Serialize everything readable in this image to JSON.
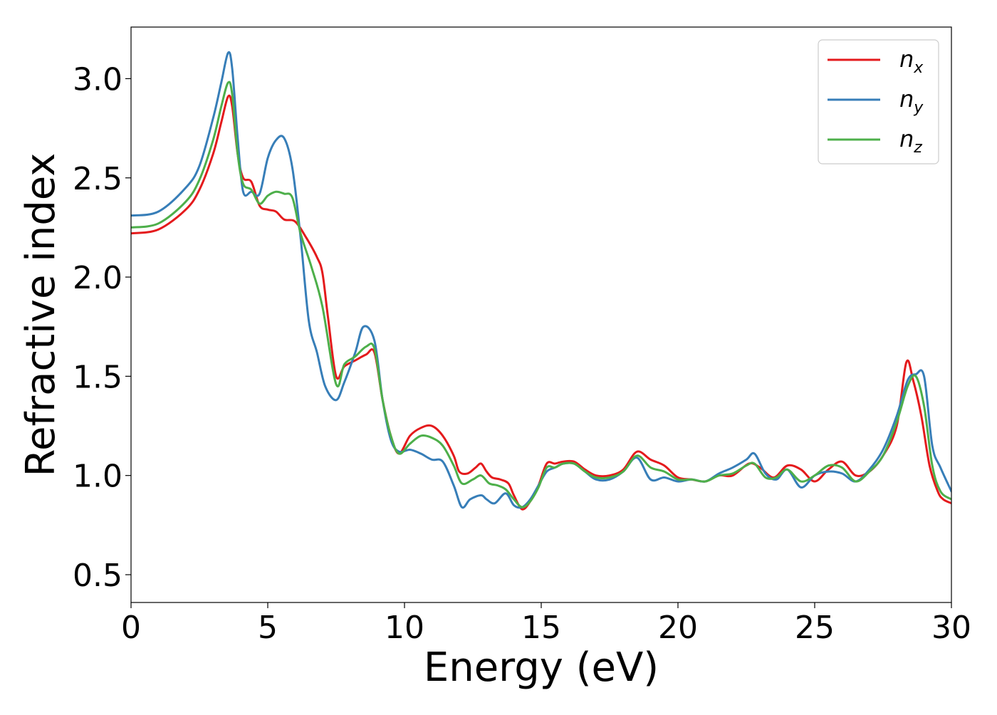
{
  "chart_data": {
    "type": "line",
    "title": "",
    "xlabel": "Energy (eV)",
    "ylabel": "Refractive index",
    "xlim": [
      0,
      30
    ],
    "ylim": [
      0.36,
      3.26
    ],
    "xticks": [
      0,
      5,
      10,
      15,
      20,
      25,
      30
    ],
    "yticks": [
      0.5,
      1.0,
      1.5,
      2.0,
      2.5,
      3.0
    ],
    "xtick_labels": [
      "0",
      "5",
      "10",
      "15",
      "20",
      "25",
      "30"
    ],
    "ytick_labels": [
      "0.5",
      "1.0",
      "1.5",
      "2.0",
      "2.5",
      "3.0"
    ],
    "grid": false,
    "legend_position": "top-right",
    "series": [
      {
        "name": "n_x",
        "legend_base": "n",
        "legend_sub": "x",
        "color": "#e41a1c",
        "x": [
          0,
          1,
          2,
          2.5,
          3.0,
          3.3,
          3.55,
          3.7,
          3.9,
          4.1,
          4.4,
          4.7,
          5.0,
          5.3,
          5.6,
          6.0,
          6.4,
          6.8,
          7.0,
          7.2,
          7.5,
          7.8,
          8.2,
          8.6,
          8.9,
          9.2,
          9.5,
          9.8,
          10.2,
          10.6,
          11.0,
          11.4,
          11.8,
          12.0,
          12.3,
          12.6,
          12.8,
          13.0,
          13.2,
          13.5,
          13.8,
          14.0,
          14.3,
          14.6,
          14.9,
          15.2,
          15.5,
          15.8,
          16.2,
          16.6,
          17.0,
          17.5,
          18.0,
          18.5,
          19.0,
          19.5,
          20.0,
          20.5,
          21.0,
          21.5,
          22.0,
          22.6,
          23.0,
          23.5,
          24.0,
          24.5,
          25.0,
          25.5,
          26.0,
          26.5,
          27.0,
          27.5,
          28.0,
          28.35,
          28.6,
          28.9,
          29.2,
          29.5,
          29.7,
          30.0
        ],
        "y": [
          2.22,
          2.24,
          2.34,
          2.44,
          2.62,
          2.78,
          2.91,
          2.86,
          2.62,
          2.5,
          2.48,
          2.36,
          2.34,
          2.33,
          2.29,
          2.28,
          2.2,
          2.1,
          2.02,
          1.8,
          1.5,
          1.55,
          1.58,
          1.61,
          1.62,
          1.38,
          1.2,
          1.11,
          1.2,
          1.24,
          1.25,
          1.2,
          1.1,
          1.02,
          1.01,
          1.04,
          1.06,
          1.02,
          0.99,
          0.98,
          0.96,
          0.9,
          0.83,
          0.87,
          0.95,
          1.06,
          1.06,
          1.07,
          1.07,
          1.03,
          1.0,
          1.0,
          1.03,
          1.12,
          1.08,
          1.05,
          0.99,
          0.98,
          0.97,
          1.0,
          1.0,
          1.06,
          1.04,
          0.99,
          1.05,
          1.03,
          0.97,
          1.03,
          1.07,
          1.0,
          1.02,
          1.1,
          1.25,
          1.57,
          1.48,
          1.3,
          1.05,
          0.92,
          0.88,
          0.86
        ]
      },
      {
        "name": "n_y",
        "legend_base": "n",
        "legend_sub": "y",
        "color": "#377eb8",
        "x": [
          0,
          1,
          2,
          2.5,
          3.0,
          3.3,
          3.55,
          3.7,
          3.9,
          4.1,
          4.4,
          4.7,
          5.0,
          5.3,
          5.6,
          5.9,
          6.2,
          6.5,
          6.8,
          7.1,
          7.5,
          7.8,
          8.2,
          8.5,
          8.9,
          9.2,
          9.5,
          9.8,
          10.2,
          10.6,
          11.0,
          11.4,
          11.8,
          12.1,
          12.4,
          12.8,
          13.0,
          13.3,
          13.7,
          14.0,
          14.3,
          14.6,
          14.9,
          15.2,
          15.5,
          15.8,
          16.2,
          16.6,
          17.0,
          17.5,
          18.0,
          18.5,
          19.0,
          19.5,
          20.0,
          20.5,
          21.0,
          21.5,
          22.0,
          22.5,
          22.8,
          23.2,
          23.6,
          24.0,
          24.5,
          25.0,
          25.5,
          26.0,
          26.5,
          27.0,
          27.5,
          28.0,
          28.4,
          28.7,
          29.0,
          29.3,
          29.6,
          30.0
        ],
        "y": [
          2.31,
          2.33,
          2.45,
          2.56,
          2.8,
          2.98,
          3.13,
          3.05,
          2.7,
          2.43,
          2.43,
          2.42,
          2.6,
          2.69,
          2.7,
          2.55,
          2.2,
          1.78,
          1.62,
          1.45,
          1.38,
          1.47,
          1.62,
          1.75,
          1.68,
          1.38,
          1.18,
          1.12,
          1.13,
          1.11,
          1.08,
          1.07,
          0.95,
          0.84,
          0.88,
          0.9,
          0.88,
          0.86,
          0.91,
          0.85,
          0.84,
          0.88,
          0.95,
          1.02,
          1.04,
          1.06,
          1.06,
          1.02,
          0.98,
          0.98,
          1.02,
          1.09,
          0.98,
          0.99,
          0.97,
          0.98,
          0.97,
          1.01,
          1.04,
          1.08,
          1.11,
          1.01,
          0.98,
          1.03,
          0.94,
          1.0,
          1.02,
          1.01,
          0.97,
          1.03,
          1.13,
          1.3,
          1.48,
          1.51,
          1.5,
          1.15,
          1.04,
          0.92
        ]
      },
      {
        "name": "n_z",
        "legend_base": "n",
        "legend_sub": "z",
        "color": "#4daf4a",
        "x": [
          0,
          1,
          2,
          2.5,
          3.0,
          3.3,
          3.55,
          3.7,
          3.9,
          4.1,
          4.4,
          4.7,
          5.0,
          5.3,
          5.6,
          5.9,
          6.2,
          6.6,
          7.0,
          7.5,
          7.8,
          8.2,
          8.6,
          8.9,
          9.2,
          9.5,
          9.8,
          10.2,
          10.6,
          11.0,
          11.4,
          11.8,
          12.1,
          12.5,
          12.8,
          13.1,
          13.4,
          13.7,
          14.0,
          14.3,
          14.6,
          14.9,
          15.2,
          15.5,
          15.8,
          16.2,
          16.6,
          17.0,
          17.5,
          18.0,
          18.5,
          19.0,
          19.5,
          20.0,
          20.5,
          21.0,
          21.5,
          22.0,
          22.5,
          22.8,
          23.2,
          23.6,
          24.0,
          24.5,
          25.0,
          25.5,
          26.0,
          26.5,
          27.0,
          27.5,
          28.0,
          28.4,
          28.7,
          29.0,
          29.3,
          29.6,
          30.0
        ],
        "y": [
          2.25,
          2.27,
          2.38,
          2.49,
          2.69,
          2.86,
          2.98,
          2.92,
          2.62,
          2.47,
          2.44,
          2.37,
          2.41,
          2.43,
          2.42,
          2.4,
          2.22,
          2.05,
          1.85,
          1.46,
          1.56,
          1.6,
          1.65,
          1.64,
          1.38,
          1.2,
          1.11,
          1.16,
          1.2,
          1.19,
          1.15,
          1.05,
          0.96,
          0.98,
          1.0,
          0.96,
          0.95,
          0.93,
          0.88,
          0.84,
          0.87,
          0.94,
          1.04,
          1.04,
          1.06,
          1.06,
          1.02,
          0.99,
          0.99,
          1.02,
          1.1,
          1.04,
          1.02,
          0.98,
          0.98,
          0.97,
          1.0,
          1.01,
          1.05,
          1.06,
          0.99,
          0.99,
          1.03,
          0.97,
          1.0,
          1.05,
          1.04,
          0.97,
          1.02,
          1.1,
          1.27,
          1.45,
          1.5,
          1.35,
          1.05,
          0.92,
          0.88
        ]
      }
    ]
  }
}
